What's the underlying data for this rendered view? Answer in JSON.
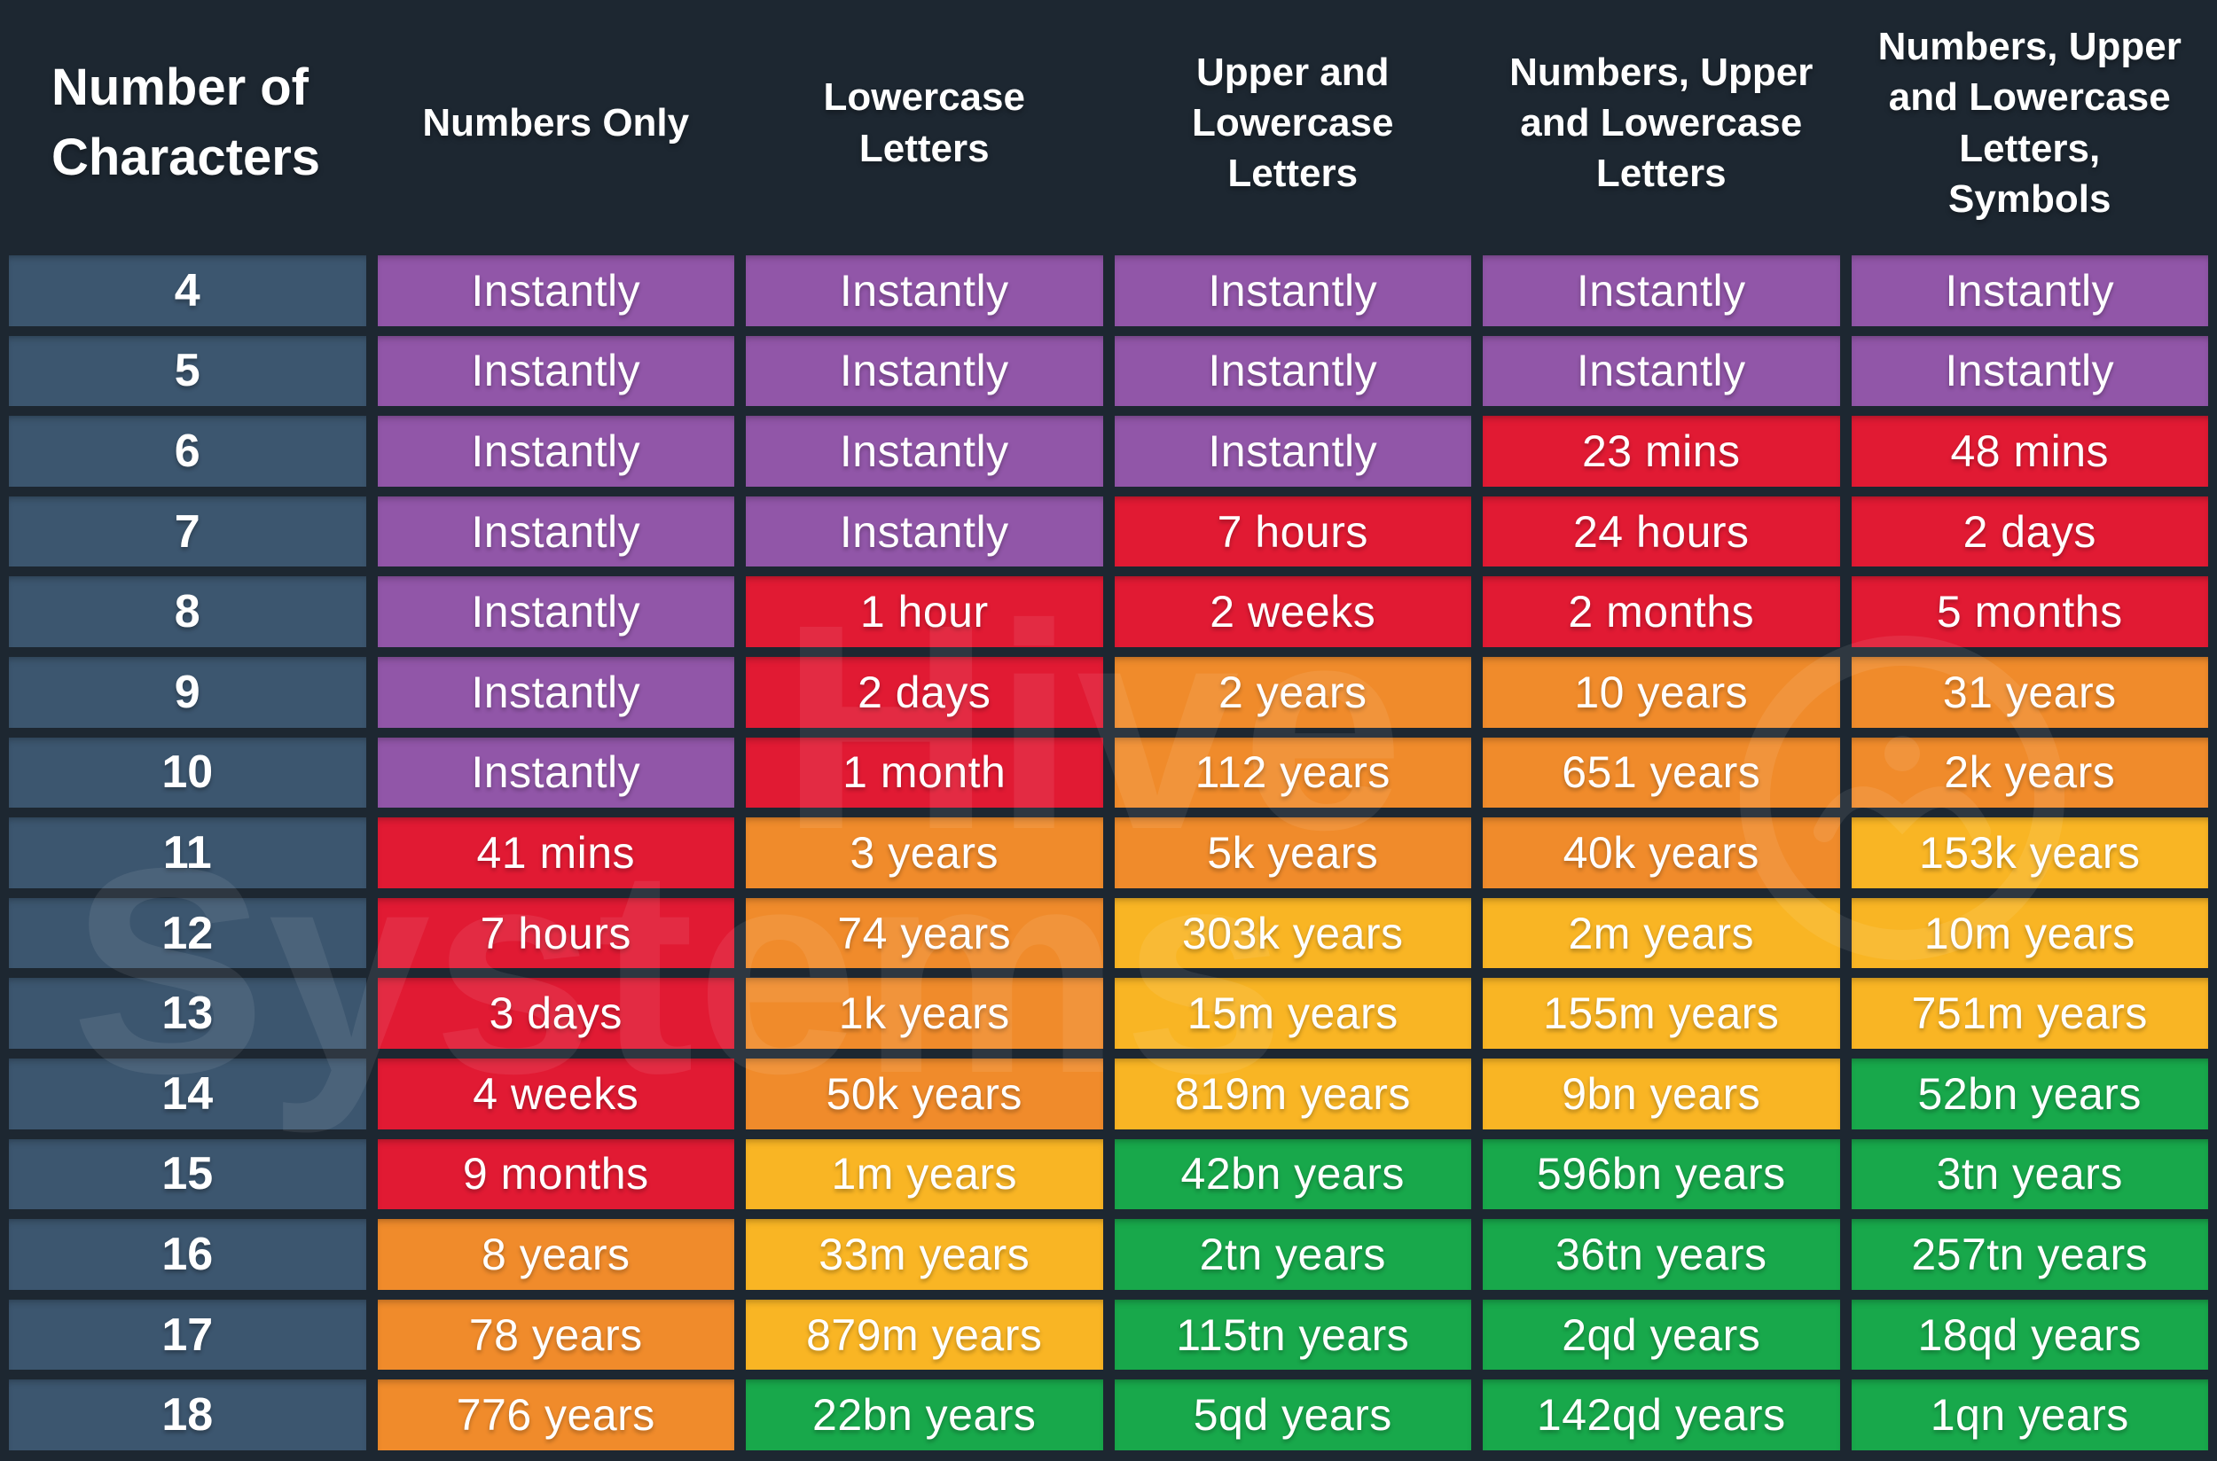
{
  "palette": {
    "purple": "#9156a8",
    "red": "#e11a33",
    "orange": "#f08b2b",
    "amber": "#f9b524",
    "green": "#18a84b",
    "row_header": "#3c566f",
    "background": "#1d2731",
    "text": "#ffffff"
  },
  "watermark": {
    "word1": "Hive",
    "word2": "Systems"
  },
  "chart_data": {
    "type": "table",
    "columns": [
      "Number of Characters",
      "Numbers Only",
      "Lowercase Letters",
      "Upper and Lowercase Letters",
      "Numbers, Upper and Lowercase Letters",
      "Numbers, Upper and Lowercase Letters, Symbols"
    ],
    "rows": [
      {
        "chars": "4",
        "cells": [
          {
            "text": "Instantly",
            "color": "purple"
          },
          {
            "text": "Instantly",
            "color": "purple"
          },
          {
            "text": "Instantly",
            "color": "purple"
          },
          {
            "text": "Instantly",
            "color": "purple"
          },
          {
            "text": "Instantly",
            "color": "purple"
          }
        ]
      },
      {
        "chars": "5",
        "cells": [
          {
            "text": "Instantly",
            "color": "purple"
          },
          {
            "text": "Instantly",
            "color": "purple"
          },
          {
            "text": "Instantly",
            "color": "purple"
          },
          {
            "text": "Instantly",
            "color": "purple"
          },
          {
            "text": "Instantly",
            "color": "purple"
          }
        ]
      },
      {
        "chars": "6",
        "cells": [
          {
            "text": "Instantly",
            "color": "purple"
          },
          {
            "text": "Instantly",
            "color": "purple"
          },
          {
            "text": "Instantly",
            "color": "purple"
          },
          {
            "text": "23 mins",
            "color": "red"
          },
          {
            "text": "48 mins",
            "color": "red"
          }
        ]
      },
      {
        "chars": "7",
        "cells": [
          {
            "text": "Instantly",
            "color": "purple"
          },
          {
            "text": "Instantly",
            "color": "purple"
          },
          {
            "text": "7 hours",
            "color": "red"
          },
          {
            "text": "24 hours",
            "color": "red"
          },
          {
            "text": "2 days",
            "color": "red"
          }
        ]
      },
      {
        "chars": "8",
        "cells": [
          {
            "text": "Instantly",
            "color": "purple"
          },
          {
            "text": "1 hour",
            "color": "red"
          },
          {
            "text": "2 weeks",
            "color": "red"
          },
          {
            "text": "2 months",
            "color": "red"
          },
          {
            "text": "5 months",
            "color": "red"
          }
        ]
      },
      {
        "chars": "9",
        "cells": [
          {
            "text": "Instantly",
            "color": "purple"
          },
          {
            "text": "2 days",
            "color": "red"
          },
          {
            "text": "2 years",
            "color": "orange"
          },
          {
            "text": "10 years",
            "color": "orange"
          },
          {
            "text": "31 years",
            "color": "orange"
          }
        ]
      },
      {
        "chars": "10",
        "cells": [
          {
            "text": "Instantly",
            "color": "purple"
          },
          {
            "text": "1 month",
            "color": "red"
          },
          {
            "text": "112 years",
            "color": "orange"
          },
          {
            "text": "651 years",
            "color": "orange"
          },
          {
            "text": "2k years",
            "color": "orange"
          }
        ]
      },
      {
        "chars": "11",
        "cells": [
          {
            "text": "41 mins",
            "color": "red"
          },
          {
            "text": "3 years",
            "color": "orange"
          },
          {
            "text": "5k years",
            "color": "orange"
          },
          {
            "text": "40k years",
            "color": "orange"
          },
          {
            "text": "153k years",
            "color": "amber"
          }
        ]
      },
      {
        "chars": "12",
        "cells": [
          {
            "text": "7 hours",
            "color": "red"
          },
          {
            "text": "74 years",
            "color": "orange"
          },
          {
            "text": "303k years",
            "color": "amber"
          },
          {
            "text": "2m years",
            "color": "amber"
          },
          {
            "text": "10m years",
            "color": "amber"
          }
        ]
      },
      {
        "chars": "13",
        "cells": [
          {
            "text": "3 days",
            "color": "red"
          },
          {
            "text": "1k years",
            "color": "orange"
          },
          {
            "text": "15m years",
            "color": "amber"
          },
          {
            "text": "155m years",
            "color": "amber"
          },
          {
            "text": "751m years",
            "color": "amber"
          }
        ]
      },
      {
        "chars": "14",
        "cells": [
          {
            "text": "4 weeks",
            "color": "red"
          },
          {
            "text": "50k years",
            "color": "orange"
          },
          {
            "text": "819m years",
            "color": "amber"
          },
          {
            "text": "9bn years",
            "color": "amber"
          },
          {
            "text": "52bn years",
            "color": "green"
          }
        ]
      },
      {
        "chars": "15",
        "cells": [
          {
            "text": "9 months",
            "color": "red"
          },
          {
            "text": "1m years",
            "color": "amber"
          },
          {
            "text": "42bn years",
            "color": "green"
          },
          {
            "text": "596bn years",
            "color": "green"
          },
          {
            "text": "3tn years",
            "color": "green"
          }
        ]
      },
      {
        "chars": "16",
        "cells": [
          {
            "text": "8 years",
            "color": "orange"
          },
          {
            "text": "33m years",
            "color": "amber"
          },
          {
            "text": "2tn years",
            "color": "green"
          },
          {
            "text": "36tn years",
            "color": "green"
          },
          {
            "text": "257tn years",
            "color": "green"
          }
        ]
      },
      {
        "chars": "17",
        "cells": [
          {
            "text": "78 years",
            "color": "orange"
          },
          {
            "text": "879m years",
            "color": "amber"
          },
          {
            "text": "115tn years",
            "color": "green"
          },
          {
            "text": "2qd years",
            "color": "green"
          },
          {
            "text": "18qd years",
            "color": "green"
          }
        ]
      },
      {
        "chars": "18",
        "cells": [
          {
            "text": "776 years",
            "color": "orange"
          },
          {
            "text": "22bn years",
            "color": "green"
          },
          {
            "text": "5qd years",
            "color": "green"
          },
          {
            "text": "142qd years",
            "color": "green"
          },
          {
            "text": "1qn years",
            "color": "green"
          }
        ]
      }
    ]
  }
}
